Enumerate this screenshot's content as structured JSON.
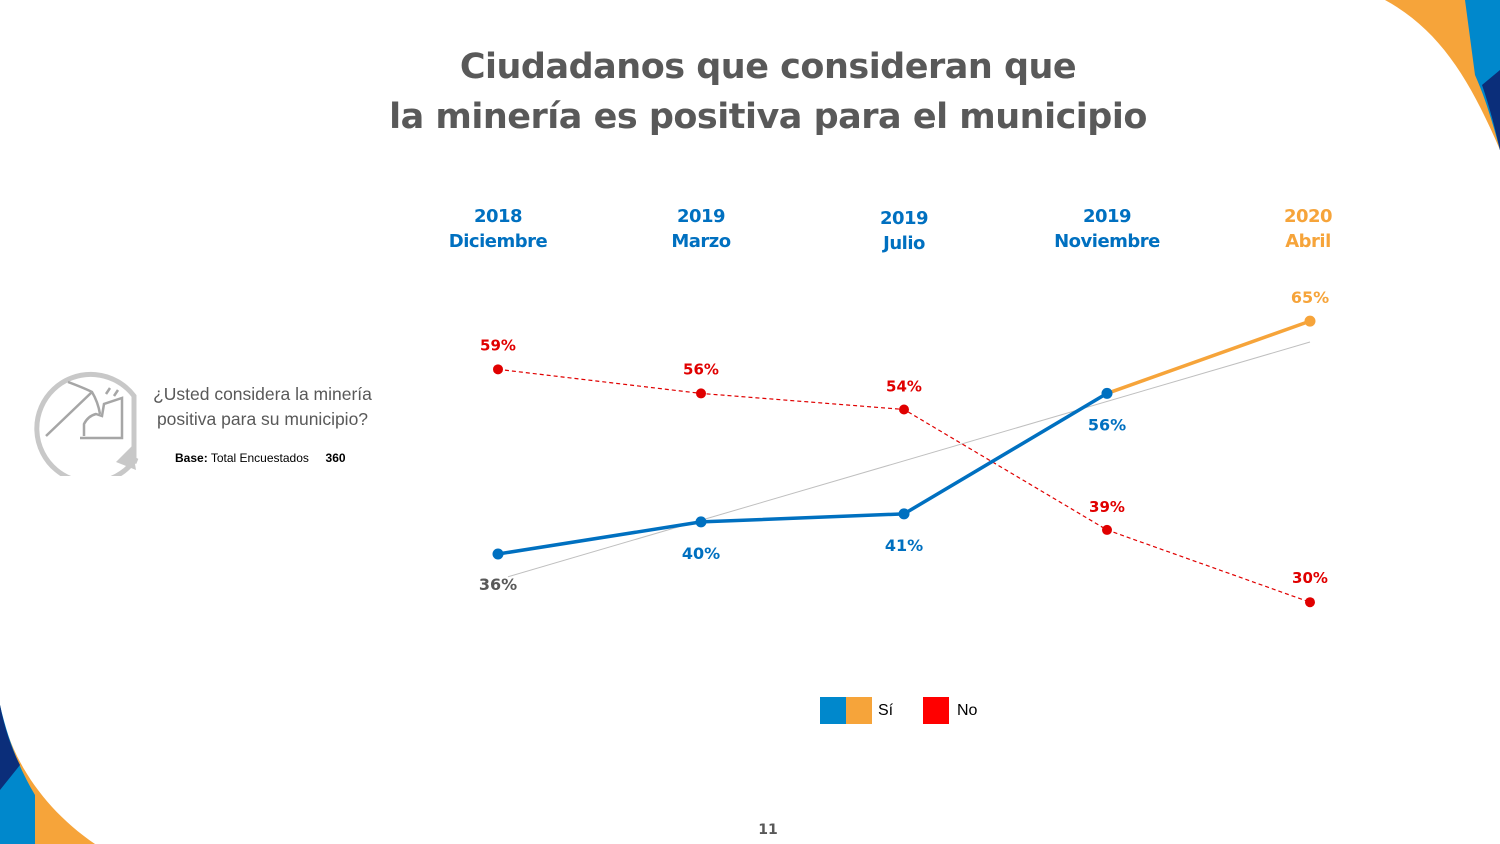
{
  "title_lines": [
    "Ciudadanos que consideran que",
    "la minería es positiva para el municipio"
  ],
  "question": "¿Usted considera la minería positiva para su municipio?",
  "base": {
    "label": "Base:",
    "text": "Total Encuestados",
    "value": "360"
  },
  "page_number": "11",
  "colors": {
    "blue": "#0070C0",
    "orange": "#F6A43A",
    "red": "#E00000",
    "gray_text": "#595959",
    "trend": "#BFBFBF",
    "navy": "#0B2E7A"
  },
  "chart_data": {
    "type": "line",
    "categories": [
      {
        "year": "2018",
        "month": "Diciembre"
      },
      {
        "year": "2019",
        "month": "Marzo"
      },
      {
        "year": "2019",
        "month": "Julio"
      },
      {
        "year": "2019",
        "month": "Noviembre"
      },
      {
        "year": "2020",
        "month": "Abril"
      }
    ],
    "series": [
      {
        "name": "Sí",
        "values": [
          36,
          40,
          41,
          56,
          65
        ],
        "labels": [
          "36%",
          "40%",
          "41%",
          "56%",
          "65%"
        ],
        "style": "solid",
        "colors": [
          "#0070C0",
          "#F6A43A"
        ],
        "trendline": "linear"
      },
      {
        "name": "No",
        "values": [
          59,
          56,
          54,
          39,
          30
        ],
        "labels": [
          "59%",
          "56%",
          "54%",
          "39%",
          "30%"
        ],
        "style": "dashed",
        "color": "#E00000"
      }
    ],
    "grid": false,
    "legend_position": "bottom"
  }
}
